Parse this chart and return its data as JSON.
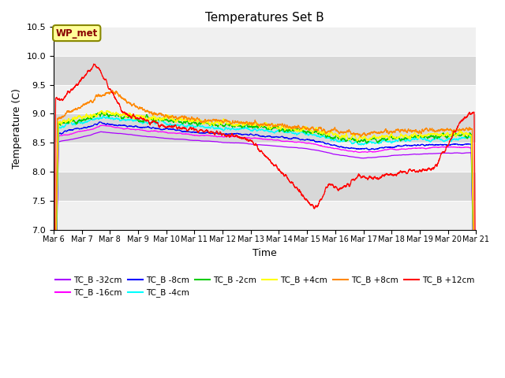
{
  "title": "Temperatures Set B",
  "xlabel": "Time",
  "ylabel": "Temperature (C)",
  "ylim": [
    7.0,
    10.5
  ],
  "yticks": [
    7.0,
    7.5,
    8.0,
    8.5,
    9.0,
    9.5,
    10.0,
    10.5
  ],
  "n_days": 15,
  "start_day": 6,
  "background_color": "#ffffff",
  "plot_bg_light": "#f0f0f0",
  "plot_bg_dark": "#d8d8d8",
  "legend_entries": [
    {
      "label": "TC_B -32cm",
      "color": "#aa00ff"
    },
    {
      "label": "TC_B -16cm",
      "color": "#ff00ff"
    },
    {
      "label": "TC_B -8cm",
      "color": "#0000ff"
    },
    {
      "label": "TC_B -4cm",
      "color": "#00ffff"
    },
    {
      "label": "TC_B -2cm",
      "color": "#00cc00"
    },
    {
      "label": "TC_B +4cm",
      "color": "#ffff00"
    },
    {
      "label": "TC_B +8cm",
      "color": "#ff8800"
    },
    {
      "label": "TC_B +12cm",
      "color": "#ff0000"
    }
  ],
  "wp_met_label": "WP_met",
  "wp_met_color": "#880000",
  "wp_met_bg": "#ffff99",
  "wp_met_border": "#888800",
  "seed": 12345
}
